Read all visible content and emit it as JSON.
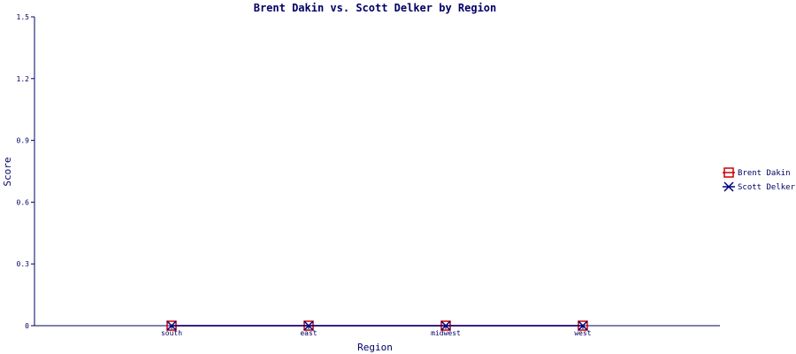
{
  "chart_data": {
    "type": "line",
    "title": "Brent Dakin vs. Scott Delker by Region",
    "xlabel": "Region",
    "ylabel": "Score",
    "categories": [
      "south",
      "east",
      "midwest",
      "west"
    ],
    "ylim": [
      0,
      1.5
    ],
    "yticks": [
      "0",
      "0.3",
      "0.6",
      "0.9",
      "1.2",
      "1.5"
    ],
    "grid": false,
    "legend_position": "right",
    "series": [
      {
        "name": "Brent Dakin",
        "values": [
          0,
          0,
          0,
          0
        ],
        "color": "#cc0000",
        "marker": "square"
      },
      {
        "name": "Scott Delker",
        "values": [
          0,
          0,
          0,
          0
        ],
        "color": "#000080",
        "marker": "x"
      }
    ]
  },
  "colors": {
    "axis": "#000066",
    "text": "#000066"
  }
}
